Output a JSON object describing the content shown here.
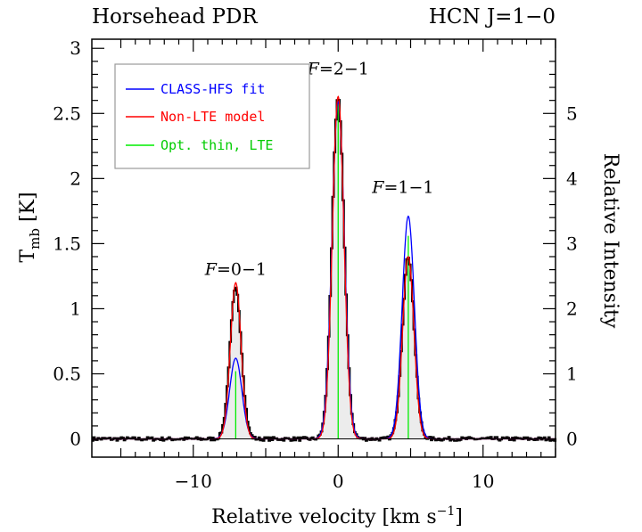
{
  "chart_data": {
    "type": "line",
    "title_left": "Horsehead PDR",
    "title_right": "HCN J=1−0",
    "xlabel_main": "Relative velocity [km s",
    "xlabel_sup": "−1",
    "xlabel_end": "]",
    "ylabel_main": "T",
    "ylabel_sub": "mb",
    "ylabel_end": " [K]",
    "y2label": "Relative Intensity",
    "xlim": [
      -17,
      15
    ],
    "ylim": [
      -0.14,
      3.07
    ],
    "x_ticks": [
      -10,
      0,
      10
    ],
    "x_tick_labels": [
      "−10",
      "0",
      "10"
    ],
    "y_ticks": [
      0,
      0.5,
      1,
      1.5,
      2,
      2.5,
      3
    ],
    "y_tick_labels": [
      "0",
      "0.5",
      "1",
      "1.5",
      "2",
      "2.5",
      "3"
    ],
    "y2_ticks": [
      0,
      1,
      2,
      3,
      4,
      5
    ],
    "y2_tick_labels": [
      "0",
      "1",
      "2",
      "3",
      "4",
      "5"
    ],
    "y2_scale": 0.5,
    "grid": false,
    "legend_position": "top-left",
    "components": [
      {
        "label_italic": "F",
        "label_rest": "=0−1",
        "velocity": -7.07
      },
      {
        "label_italic": "F",
        "label_rest": "=2−1",
        "velocity": 0.0
      },
      {
        "label_italic": "F",
        "label_rest": "=1−1",
        "velocity": 4.84
      }
    ],
    "series": [
      {
        "name": "CLASS-HFS fit",
        "color": "#0000ff",
        "components": [
          [
            -7.07,
            0.62,
            0.42
          ],
          [
            0.0,
            2.59,
            0.42
          ],
          [
            4.84,
            1.71,
            0.42
          ]
        ]
      },
      {
        "name": "Non-LTE model",
        "color": "#ff0000",
        "components": [
          [
            -7.07,
            1.2,
            0.37
          ],
          [
            0.0,
            2.63,
            0.4
          ],
          [
            4.84,
            1.4,
            0.39
          ]
        ]
      },
      {
        "name": "Opt. thin, LTE",
        "color": "#00ee00",
        "lines": [
          [
            -7.07,
            0.52
          ],
          [
            0.0,
            2.6
          ],
          [
            4.84,
            1.56
          ]
        ]
      }
    ],
    "observed_spectrum": {
      "color": "#000000",
      "channel_width_km_s": 0.1,
      "components": [
        [
          -7.07,
          1.15,
          0.4
        ],
        [
          0.0,
          2.61,
          0.42
        ],
        [
          4.84,
          1.4,
          0.41
        ]
      ]
    }
  }
}
